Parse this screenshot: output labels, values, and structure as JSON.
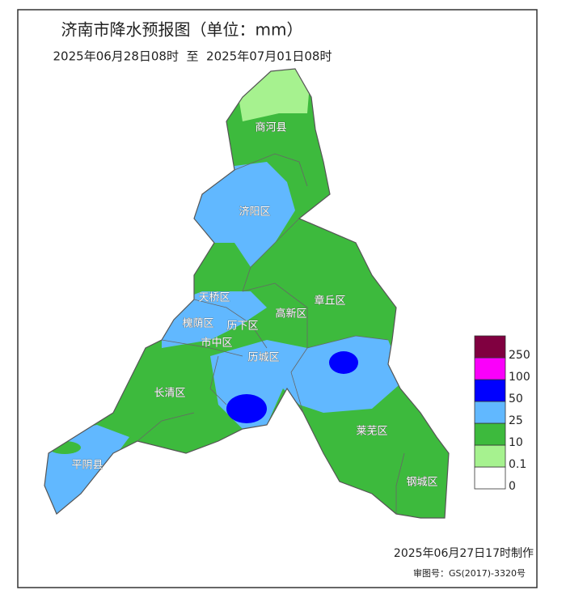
{
  "title": "济南市降水预报图（单位：mm）",
  "subtitle": "2025年06月28日08时  至  2025年07月01日08时",
  "districts": [
    "商河县",
    "济阳区",
    "天桥区",
    "章丘区",
    "高新区",
    "槐荫区",
    "历下区",
    "市中区",
    "历城区",
    "长清区",
    "莱芜区",
    "平阴县",
    "钢城区"
  ],
  "legend": {
    "levels": [
      0,
      0.1,
      10,
      25,
      50,
      100,
      250
    ],
    "colors": [
      "#ffffff",
      "#a6f28f",
      "#3dba3d",
      "#61b8ff",
      "#0000ff",
      "#fa00fa",
      "#800040"
    ]
  },
  "footer": {
    "made": "2025年06月27日17时制作",
    "approval": "审图号：GS(2017)-3320号"
  }
}
